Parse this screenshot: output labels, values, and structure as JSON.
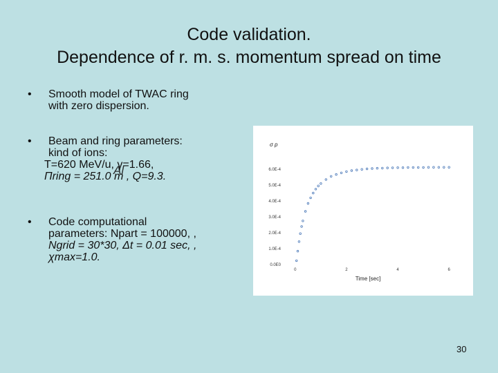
{
  "slide": {
    "title_line1": "Code validation.",
    "title_line2": "Dependence of r. m. s. momentum spread on time",
    "page_number": "30"
  },
  "bullets": [
    {
      "marker": "•",
      "lines": [
        "Smooth model of TWAC ring",
        "with zero dispersion."
      ]
    },
    {
      "marker": "•",
      "lines": [
        "Beam and ring parameters:",
        "kind of ions:",
        "T=620 MeV/u, γ=1.66,",
        "Πring = 251.0 m , Q=9.3."
      ]
    },
    {
      "marker": "•",
      "lines": [
        "Code computational",
        "parameters:  Npart = 100000, ,",
        "Ngrid = 30*30, Δt = 0.01 sec, ,",
        "χmax=1.0."
      ]
    }
  ],
  "overlay_text": "Al",
  "chart_data": {
    "type": "scatter",
    "title": "",
    "xlabel": "Time [sec]",
    "ylabel": "σ p",
    "xlim": [
      -0.4,
      6.4
    ],
    "ylim": [
      0,
      0.00066
    ],
    "x_ticks": [
      "0",
      "2",
      "4",
      "6"
    ],
    "y_ticks": [
      "0.0E0",
      "1.0E-4",
      "2.0E-4",
      "3.0E-4",
      "4.0E-4",
      "5.0E-4",
      "6.0E-4"
    ],
    "grid": false,
    "legend": "none",
    "colors": {
      "points": "#4a78b8"
    },
    "series": [
      {
        "x": [
          0.05,
          0.1,
          0.15,
          0.2,
          0.25,
          0.3,
          0.4,
          0.5,
          0.6,
          0.7,
          0.8,
          0.9,
          1.0,
          1.2,
          1.4,
          1.6,
          1.8,
          2.0,
          2.2,
          2.4,
          2.6,
          2.8,
          3.0,
          3.2,
          3.4,
          3.6,
          3.8,
          4.0,
          4.2,
          4.4,
          4.6,
          4.8,
          5.0,
          5.2,
          5.4,
          5.6,
          5.8,
          6.0
        ],
        "y": [
          2e-05,
          8e-05,
          0.00014,
          0.00019,
          0.000235,
          0.00027,
          0.00033,
          0.00038,
          0.000415,
          0.000445,
          0.00047,
          0.00049,
          0.000505,
          0.00053,
          0.00055,
          0.000562,
          0.000572,
          0.00058,
          0.000586,
          0.00059,
          0.000594,
          0.000597,
          0.000599,
          0.000601,
          0.000602,
          0.000603,
          0.000604,
          0.000605,
          0.000605,
          0.000606,
          0.000606,
          0.000606,
          0.000606,
          0.000607,
          0.000607,
          0.000607,
          0.000607,
          0.000607
        ]
      }
    ]
  }
}
